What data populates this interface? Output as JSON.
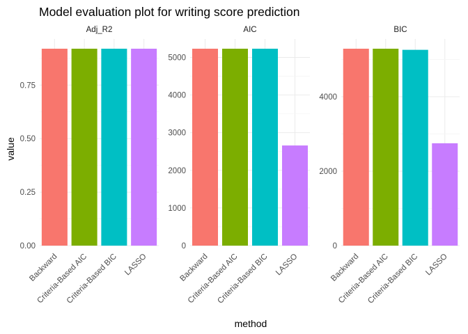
{
  "chart_data": {
    "type": "bar",
    "title": "Model evaluation plot for writing score prediction",
    "xlabel": "method",
    "ylabel": "value",
    "categories": [
      "Backward",
      "Criteria-Based AIC",
      "Criteria-Based BIC",
      "LASSO"
    ],
    "colors": [
      "#F8766D",
      "#7CAE00",
      "#00BFC4",
      "#C77CFF"
    ],
    "grid": true,
    "legend": "none",
    "facets": [
      {
        "name": "Adj_R2",
        "values": [
          0.92,
          0.92,
          0.92,
          0.92
        ],
        "ylim": [
          0,
          0.92
        ],
        "yticks": [
          0,
          0.25,
          0.5,
          0.75
        ],
        "ytick_labels": [
          "0.00",
          "0.25",
          "0.50",
          "0.75"
        ]
      },
      {
        "name": "AIC",
        "values": [
          5230,
          5230,
          5230,
          2660
        ],
        "ylim": [
          0,
          5230
        ],
        "yticks": [
          0,
          1000,
          2000,
          3000,
          4000,
          5000
        ],
        "ytick_labels": [
          "0",
          "1000",
          "2000",
          "3000",
          "4000",
          "5000"
        ]
      },
      {
        "name": "BIC",
        "values": [
          5290,
          5290,
          5260,
          2750
        ],
        "ylim": [
          0,
          5290
        ],
        "yticks": [
          0,
          2000,
          4000
        ],
        "ytick_labels": [
          "0",
          "2000",
          "4000"
        ]
      }
    ]
  }
}
